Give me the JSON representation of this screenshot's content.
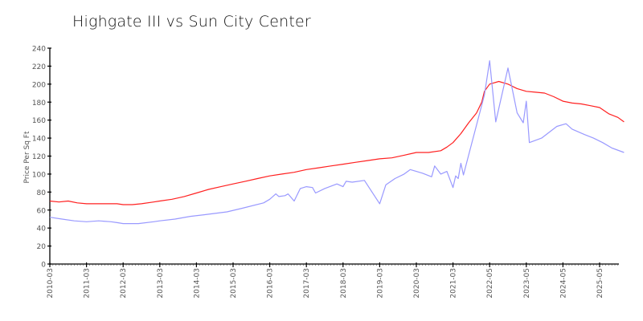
{
  "chart_data": {
    "type": "line",
    "title": "Highgate III vs Sun City Center",
    "xlabel": "",
    "ylabel": "Price Per Sq Ft",
    "ylim": [
      0,
      240
    ],
    "yticks": [
      0,
      20,
      40,
      60,
      80,
      100,
      120,
      140,
      160,
      180,
      200,
      220,
      240
    ],
    "xtick_labels": [
      "2010-03",
      "2011-03",
      "2012-03",
      "2013-03",
      "2014-03",
      "2015-03",
      "2016-03",
      "2017-03",
      "2018-03",
      "2019-03",
      "2020-03",
      "2021-03",
      "2022-05",
      "2023-05",
      "2024-05",
      "2025-05"
    ],
    "grid": false,
    "legend": null,
    "series": [
      {
        "name": "Sun City Center",
        "color": "#ff2020",
        "points": [
          [
            "2010-03",
            70
          ],
          [
            "2010-06",
            69
          ],
          [
            "2010-09",
            70
          ],
          [
            "2010-12",
            68
          ],
          [
            "2011-03",
            67
          ],
          [
            "2011-09",
            67
          ],
          [
            "2012-01",
            67
          ],
          [
            "2012-03",
            66
          ],
          [
            "2012-06",
            66
          ],
          [
            "2012-09",
            67
          ],
          [
            "2013-01",
            69
          ],
          [
            "2013-03",
            70
          ],
          [
            "2013-07",
            72
          ],
          [
            "2013-11",
            75
          ],
          [
            "2014-03",
            79
          ],
          [
            "2014-07",
            83
          ],
          [
            "2014-11",
            86
          ],
          [
            "2015-03",
            89
          ],
          [
            "2015-07",
            92
          ],
          [
            "2015-11",
            95
          ],
          [
            "2016-03",
            98
          ],
          [
            "2016-07",
            100
          ],
          [
            "2016-11",
            102
          ],
          [
            "2017-03",
            105
          ],
          [
            "2017-07",
            107
          ],
          [
            "2017-11",
            109
          ],
          [
            "2018-03",
            111
          ],
          [
            "2018-07",
            113
          ],
          [
            "2018-11",
            115
          ],
          [
            "2019-03",
            117
          ],
          [
            "2019-07",
            118
          ],
          [
            "2019-11",
            121
          ],
          [
            "2020-03",
            124
          ],
          [
            "2020-07",
            124
          ],
          [
            "2020-11",
            126
          ],
          [
            "2021-01",
            130
          ],
          [
            "2021-03",
            135
          ],
          [
            "2021-06",
            145
          ],
          [
            "2021-09",
            157
          ],
          [
            "2021-12",
            168
          ],
          [
            "2022-02",
            180
          ],
          [
            "2022-03",
            192
          ],
          [
            "2022-05",
            200
          ],
          [
            "2022-08",
            203
          ],
          [
            "2022-11",
            200
          ],
          [
            "2023-02",
            195
          ],
          [
            "2023-05",
            192
          ],
          [
            "2023-08",
            191
          ],
          [
            "2023-11",
            190
          ],
          [
            "2024-02",
            186
          ],
          [
            "2024-05",
            181
          ],
          [
            "2024-08",
            179
          ],
          [
            "2024-11",
            178
          ],
          [
            "2025-02",
            176
          ],
          [
            "2025-05",
            174
          ],
          [
            "2025-08",
            167
          ],
          [
            "2025-11",
            163
          ],
          [
            "2026-01",
            158
          ]
        ]
      },
      {
        "name": "Highgate III",
        "color": "#9999ff",
        "points": [
          [
            "2010-03",
            52
          ],
          [
            "2010-07",
            50
          ],
          [
            "2010-11",
            48
          ],
          [
            "2011-03",
            47
          ],
          [
            "2011-07",
            48
          ],
          [
            "2011-11",
            47
          ],
          [
            "2012-01",
            46
          ],
          [
            "2012-03",
            45
          ],
          [
            "2012-08",
            45
          ],
          [
            "2013-01",
            47
          ],
          [
            "2013-03",
            48
          ],
          [
            "2013-08",
            50
          ],
          [
            "2014-01",
            53
          ],
          [
            "2014-06",
            55
          ],
          [
            "2015-01",
            58
          ],
          [
            "2015-06",
            62
          ],
          [
            "2016-01",
            68
          ],
          [
            "2016-03",
            72
          ],
          [
            "2016-05",
            78
          ],
          [
            "2016-06",
            75
          ],
          [
            "2016-08",
            76
          ],
          [
            "2016-09",
            78
          ],
          [
            "2016-11",
            70
          ],
          [
            "2017-01",
            84
          ],
          [
            "2017-03",
            86
          ],
          [
            "2017-05",
            85
          ],
          [
            "2017-06",
            79
          ],
          [
            "2017-09",
            84
          ],
          [
            "2018-01",
            89
          ],
          [
            "2018-03",
            86
          ],
          [
            "2018-04",
            92
          ],
          [
            "2018-06",
            91
          ],
          [
            "2018-10",
            93
          ],
          [
            "2019-03",
            67
          ],
          [
            "2019-05",
            88
          ],
          [
            "2019-08",
            95
          ],
          [
            "2019-11",
            100
          ],
          [
            "2020-01",
            105
          ],
          [
            "2020-05",
            101
          ],
          [
            "2020-08",
            97
          ],
          [
            "2020-09",
            109
          ],
          [
            "2020-11",
            100
          ],
          [
            "2021-01",
            103
          ],
          [
            "2021-03",
            85
          ],
          [
            "2021-04",
            98
          ],
          [
            "2021-05",
            95
          ],
          [
            "2021-06",
            112
          ],
          [
            "2021-07",
            99
          ],
          [
            "2022-03",
            188
          ],
          [
            "2022-05",
            226
          ],
          [
            "2022-07",
            158
          ],
          [
            "2022-11",
            218
          ],
          [
            "2023-02",
            168
          ],
          [
            "2023-04",
            157
          ],
          [
            "2023-05",
            181
          ],
          [
            "2023-06",
            135
          ],
          [
            "2023-10",
            140
          ],
          [
            "2024-03",
            153
          ],
          [
            "2024-06",
            156
          ],
          [
            "2024-08",
            150
          ],
          [
            "2024-12",
            144
          ],
          [
            "2025-03",
            140
          ],
          [
            "2025-06",
            135
          ],
          [
            "2025-09",
            129
          ],
          [
            "2026-01",
            124
          ]
        ]
      }
    ]
  }
}
